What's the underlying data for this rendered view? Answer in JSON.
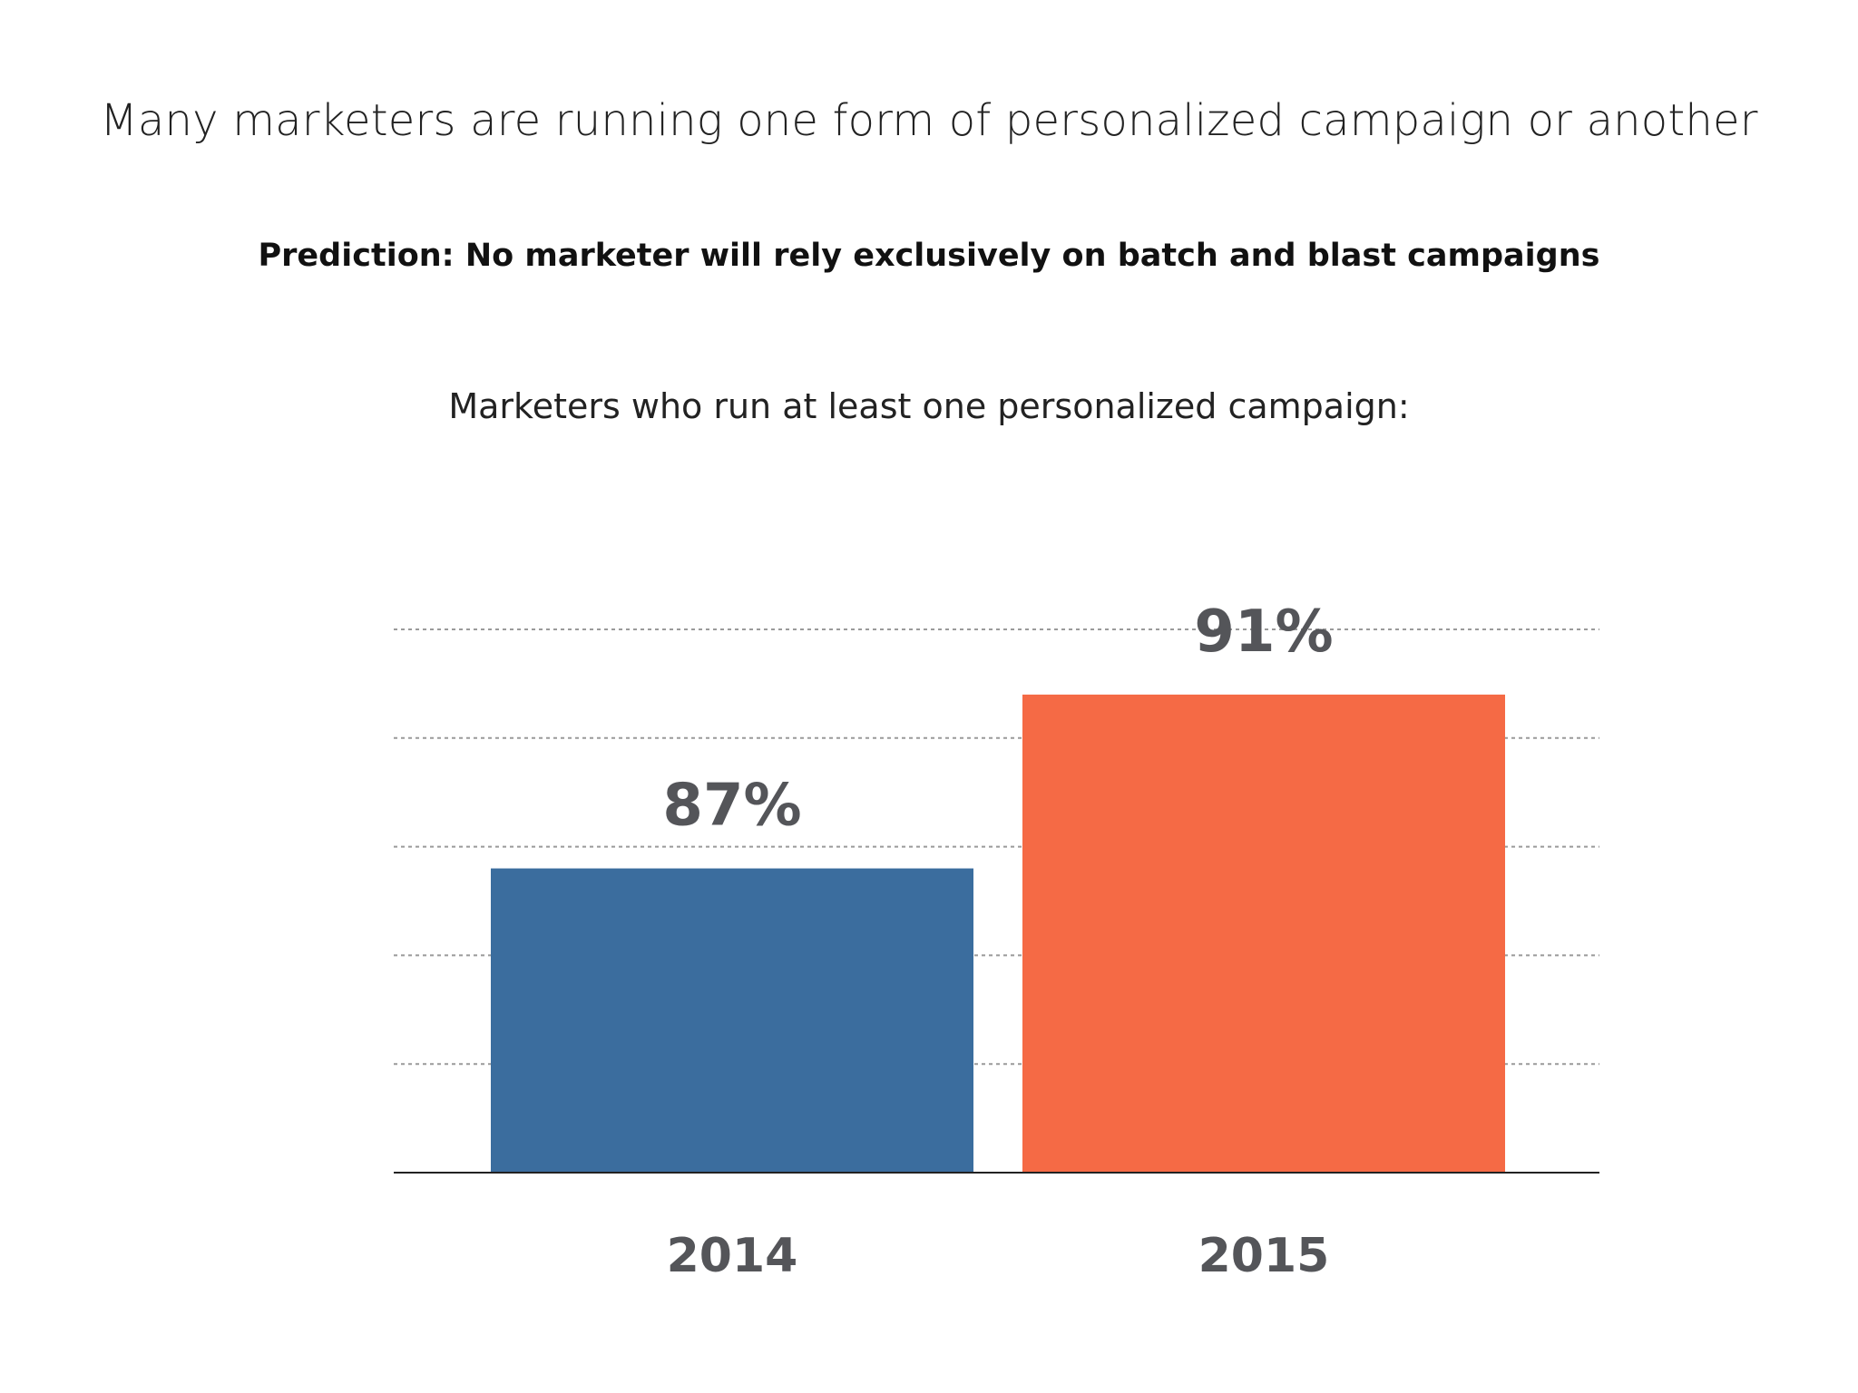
{
  "header": {
    "title": "Many marketers are running one form of personalized campaign or another",
    "prediction": "Prediction: No marketer will rely exclusively on batch and blast campaigns"
  },
  "chart_data": {
    "type": "bar",
    "title": "Marketers who run at least one personalized campaign:",
    "categories": [
      "2014",
      "2015"
    ],
    "values": [
      87,
      91
    ],
    "value_labels": [
      "87%",
      "91%"
    ],
    "colors": [
      "#3B6D9E",
      "#F56A45"
    ],
    "xlabel": "",
    "ylabel": "",
    "ylim": [
      80,
      92.5
    ],
    "grid": true,
    "gridline_values": [
      82.5,
      85,
      87.5,
      90,
      92.5
    ],
    "legend": "none"
  }
}
